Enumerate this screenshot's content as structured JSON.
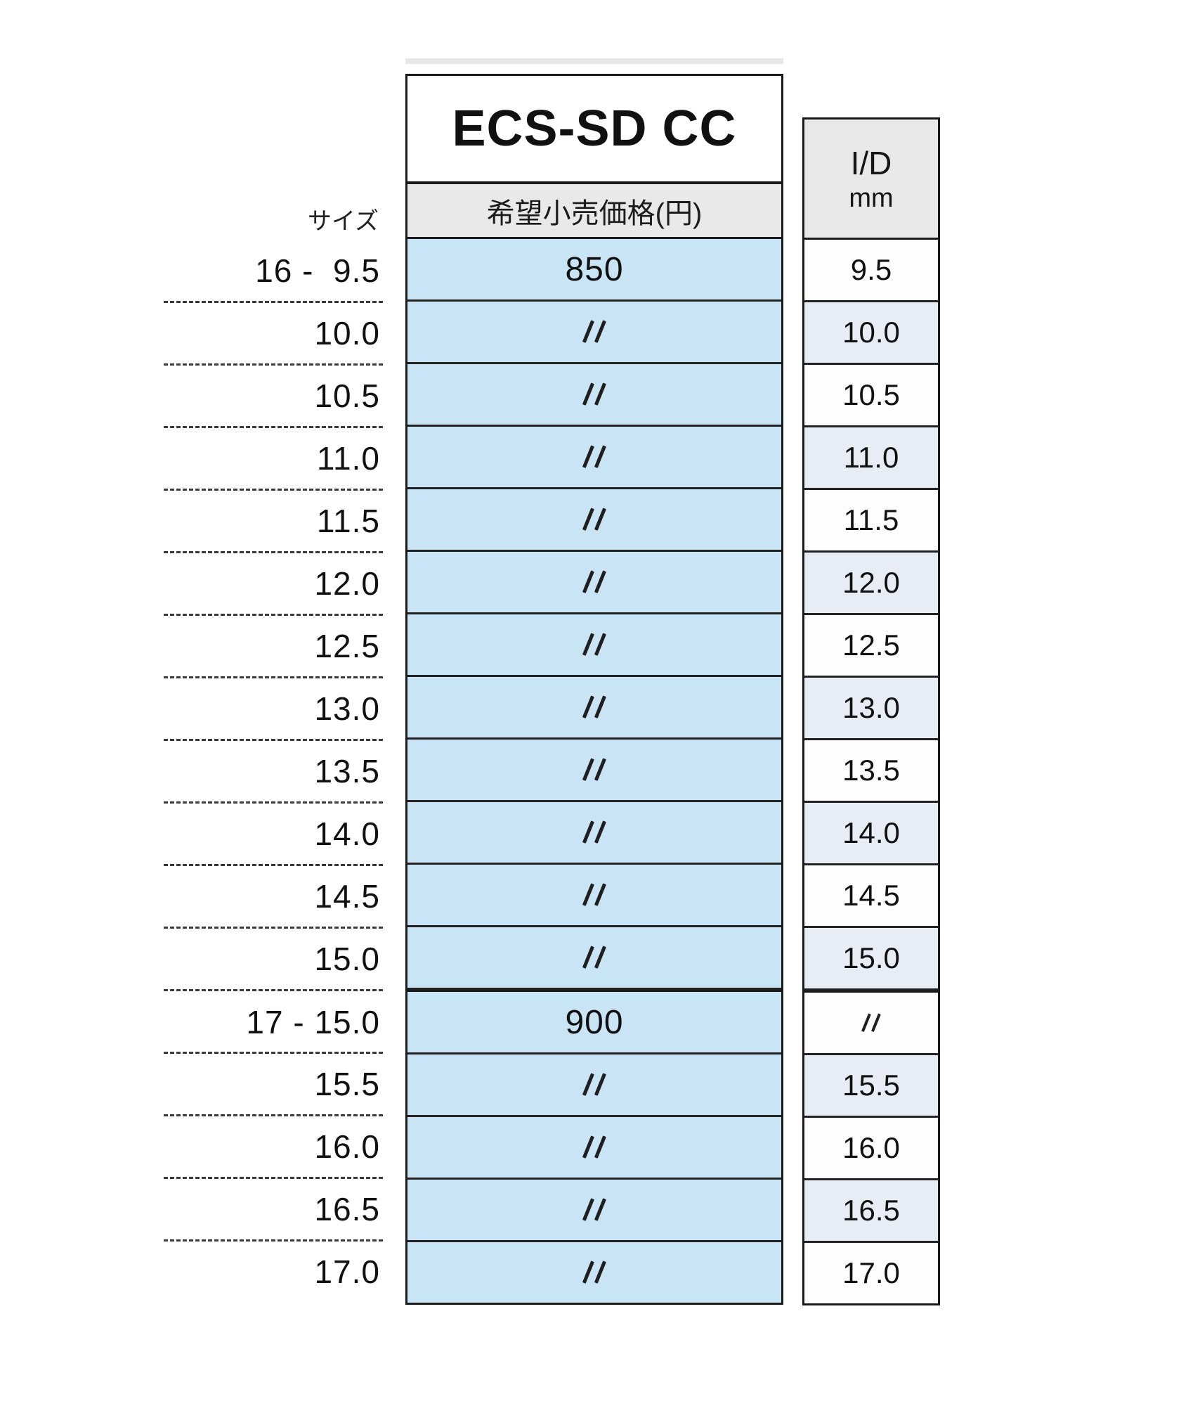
{
  "table": {
    "title": "ECS-SD CC",
    "price_column_header": "希望小売価格(円)",
    "size_column_label": "サイズ",
    "id_column_header_line1": "I/D",
    "id_column_header_line2": "mm",
    "ditto_symbol": "〃",
    "colors": {
      "price_cell_bg": "#c9e4f4",
      "id_shaded_bg": "#e8ecf4",
      "id_plain_bg": "#fdfdfe",
      "header_bg": "#e9e9e9",
      "border": "#1a1a1a"
    },
    "rows": [
      {
        "size": "16 -  9.5",
        "price": "850",
        "id": "9.5",
        "id_shaded": false,
        "group_start": false
      },
      {
        "size": "10.0",
        "price": "〃",
        "id": "10.0",
        "id_shaded": true,
        "group_start": false
      },
      {
        "size": "10.5",
        "price": "〃",
        "id": "10.5",
        "id_shaded": false,
        "group_start": false
      },
      {
        "size": "11.0",
        "price": "〃",
        "id": "11.0",
        "id_shaded": true,
        "group_start": false
      },
      {
        "size": "11.5",
        "price": "〃",
        "id": "11.5",
        "id_shaded": false,
        "group_start": false
      },
      {
        "size": "12.0",
        "price": "〃",
        "id": "12.0",
        "id_shaded": true,
        "group_start": false
      },
      {
        "size": "12.5",
        "price": "〃",
        "id": "12.5",
        "id_shaded": false,
        "group_start": false
      },
      {
        "size": "13.0",
        "price": "〃",
        "id": "13.0",
        "id_shaded": true,
        "group_start": false
      },
      {
        "size": "13.5",
        "price": "〃",
        "id": "13.5",
        "id_shaded": false,
        "group_start": false
      },
      {
        "size": "14.0",
        "price": "〃",
        "id": "14.0",
        "id_shaded": true,
        "group_start": false
      },
      {
        "size": "14.5",
        "price": "〃",
        "id": "14.5",
        "id_shaded": false,
        "group_start": false
      },
      {
        "size": "15.0",
        "price": "〃",
        "id": "15.0",
        "id_shaded": true,
        "group_start": false
      },
      {
        "size": "17 - 15.0",
        "price": "900",
        "id": "〃",
        "id_shaded": false,
        "group_start": true
      },
      {
        "size": "15.5",
        "price": "〃",
        "id": "15.5",
        "id_shaded": true,
        "group_start": false
      },
      {
        "size": "16.0",
        "price": "〃",
        "id": "16.0",
        "id_shaded": false,
        "group_start": false
      },
      {
        "size": "16.5",
        "price": "〃",
        "id": "16.5",
        "id_shaded": true,
        "group_start": false
      },
      {
        "size": "17.0",
        "price": "〃",
        "id": "17.0",
        "id_shaded": false,
        "group_start": false
      }
    ]
  }
}
